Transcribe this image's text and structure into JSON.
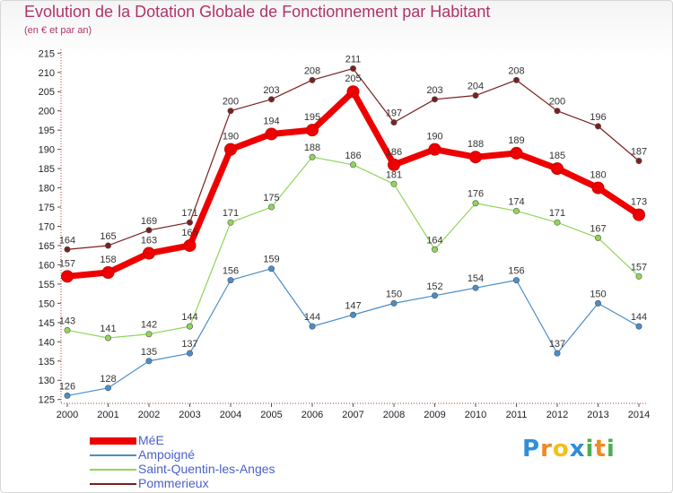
{
  "header": {
    "title": "Evolution de la Dotation Globale de Fonctionnement par Habitant",
    "subtitle": "(en € et par an)"
  },
  "logo": {
    "text": "Proxiti",
    "letters": [
      "P",
      "r",
      "o",
      "x",
      "i",
      "t",
      "i"
    ],
    "colors": [
      "#2f8fd8",
      "#f08a24",
      "#f2c018",
      "#2f8fd8",
      "#4caf50",
      "#f08a24",
      "#4caf50"
    ]
  },
  "chart_data": {
    "type": "line",
    "categories": [
      "2000",
      "2001",
      "2002",
      "2003",
      "2004",
      "2005",
      "2006",
      "2007",
      "2008",
      "2009",
      "2010",
      "2011",
      "2012",
      "2013",
      "2014"
    ],
    "ylim": [
      124,
      216
    ],
    "yticks": [
      125,
      130,
      135,
      140,
      145,
      150,
      155,
      160,
      165,
      170,
      175,
      180,
      185,
      190,
      195,
      200,
      205,
      210,
      215
    ],
    "grid": false,
    "legend_position": "bottom-left",
    "series": [
      {
        "name": "Pommerieux",
        "color": "#7a2020",
        "values": [
          164,
          165,
          169,
          171,
          200,
          203,
          208,
          211,
          197,
          203,
          204,
          208,
          200,
          196,
          187
        ]
      },
      {
        "name": "Saint-Quentin-les-Anges",
        "color": "#8fd65a",
        "values": [
          143,
          141,
          142,
          144,
          171,
          175,
          188,
          186,
          181,
          164,
          176,
          174,
          171,
          167,
          157
        ]
      },
      {
        "name": "Ampoigné",
        "color": "#4a8ec9",
        "values": [
          126,
          128,
          135,
          137,
          156,
          159,
          144,
          147,
          150,
          152,
          154,
          156,
          137,
          150,
          144
        ]
      },
      {
        "name": "MéE",
        "color": "#ee0000",
        "values": [
          157,
          158,
          163,
          165,
          190,
          194,
          195,
          205,
          186,
          190,
          188,
          189,
          185,
          180,
          173
        ]
      }
    ],
    "legend": [
      {
        "name": "MéE",
        "color": "#ee0000"
      },
      {
        "name": "Ampoigné",
        "color": "#4a8ec9"
      },
      {
        "name": "Saint-Quentin-les-Anges",
        "color": "#8fd65a"
      },
      {
        "name": "Pommerieux",
        "color": "#7a2020"
      }
    ]
  }
}
